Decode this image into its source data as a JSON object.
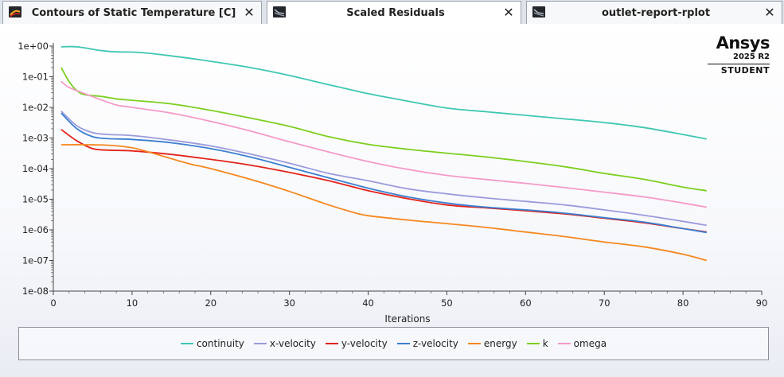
{
  "tabs": [
    {
      "label": "Contours of Static Temperature [C]",
      "icon": "contour-icon",
      "close": "✕",
      "active": false
    },
    {
      "label": "Scaled Residuals",
      "icon": "plot-icon",
      "close": "✕",
      "active": true
    },
    {
      "label": "outlet-report-rplot",
      "icon": "plot-icon",
      "close": "✕",
      "active": false
    }
  ],
  "logo": {
    "brand": "Ansys",
    "release": "2025 R2",
    "edition": "STUDENT"
  },
  "chart_data": {
    "type": "line",
    "title": "",
    "xlabel": "Iterations",
    "ylabel": "",
    "yscale": "log",
    "xlim": [
      0,
      90
    ],
    "ylim": [
      1e-08,
      1
    ],
    "x_ticks": [
      0,
      10,
      20,
      30,
      40,
      50,
      60,
      70,
      80,
      90
    ],
    "x_tick_labels": [
      "0",
      "10",
      "20",
      "30",
      "40",
      "50",
      "60",
      "70",
      "80",
      "90"
    ],
    "y_ticks": [
      1,
      0.1,
      0.01,
      0.001,
      0.0001,
      1e-05,
      1e-06,
      1e-07,
      1e-08
    ],
    "y_tick_labels": [
      "1e+00",
      "1e-01",
      "1e-02",
      "1e-03",
      "1e-04",
      "1e-05",
      "1e-06",
      "1e-07",
      "1e-08"
    ],
    "grid": false,
    "legend_position": "bottom",
    "series": [
      {
        "name": "continuity",
        "color": "#3fc7b3",
        "points": [
          [
            1,
            0.95
          ],
          [
            3,
            0.95
          ],
          [
            6,
            0.72
          ],
          [
            8,
            0.65
          ],
          [
            11,
            0.62
          ],
          [
            15,
            0.48
          ],
          [
            20,
            0.32
          ],
          [
            25,
            0.2
          ],
          [
            30,
            0.11
          ],
          [
            35,
            0.055
          ],
          [
            40,
            0.028
          ],
          [
            45,
            0.016
          ],
          [
            50,
            0.0095
          ],
          [
            55,
            0.0072
          ],
          [
            60,
            0.0055
          ],
          [
            65,
            0.0042
          ],
          [
            70,
            0.0032
          ],
          [
            75,
            0.0022
          ],
          [
            80,
            0.0013
          ],
          [
            83,
            0.00093
          ]
        ]
      },
      {
        "name": "x-velocity",
        "color": "#9b9bdc",
        "points": [
          [
            1,
            0.0075
          ],
          [
            3,
            0.0025
          ],
          [
            5,
            0.0015
          ],
          [
            7,
            0.0013
          ],
          [
            10,
            0.0012
          ],
          [
            15,
            0.00085
          ],
          [
            20,
            0.00055
          ],
          [
            25,
            0.0003
          ],
          [
            30,
            0.00015
          ],
          [
            35,
            7e-05
          ],
          [
            40,
            4e-05
          ],
          [
            45,
            2.2e-05
          ],
          [
            50,
            1.5e-05
          ],
          [
            55,
            1.1e-05
          ],
          [
            60,
            8.5e-06
          ],
          [
            65,
            6.5e-06
          ],
          [
            70,
            4.5e-06
          ],
          [
            75,
            3e-06
          ],
          [
            80,
            1.9e-06
          ],
          [
            83,
            1.4e-06
          ]
        ]
      },
      {
        "name": "y-velocity",
        "color": "#e3231b",
        "points": [
          [
            1,
            0.0019
          ],
          [
            3,
            0.0008
          ],
          [
            5,
            0.00045
          ],
          [
            7,
            0.0004
          ],
          [
            10,
            0.00038
          ],
          [
            15,
            0.00029
          ],
          [
            20,
            0.0002
          ],
          [
            25,
            0.00013
          ],
          [
            30,
            7.5e-05
          ],
          [
            35,
            4e-05
          ],
          [
            40,
            1.9e-05
          ],
          [
            45,
            1.05e-05
          ],
          [
            50,
            6.5e-06
          ],
          [
            55,
            5.2e-06
          ],
          [
            60,
            4.2e-06
          ],
          [
            65,
            3.3e-06
          ],
          [
            70,
            2.4e-06
          ],
          [
            75,
            1.7e-06
          ],
          [
            80,
            1.1e-06
          ],
          [
            83,
            8.5e-07
          ]
        ]
      },
      {
        "name": "z-velocity",
        "color": "#3b7fd0",
        "points": [
          [
            1,
            0.0065
          ],
          [
            3,
            0.002
          ],
          [
            5,
            0.0011
          ],
          [
            7,
            0.00095
          ],
          [
            10,
            0.0009
          ],
          [
            15,
            0.0007
          ],
          [
            20,
            0.00045
          ],
          [
            25,
            0.00024
          ],
          [
            30,
            0.00011
          ],
          [
            35,
            5e-05
          ],
          [
            40,
            2.3e-05
          ],
          [
            45,
            1.2e-05
          ],
          [
            50,
            7.5e-06
          ],
          [
            55,
            5.5e-06
          ],
          [
            60,
            4.5e-06
          ],
          [
            65,
            3.5e-06
          ],
          [
            70,
            2.5e-06
          ],
          [
            75,
            1.8e-06
          ],
          [
            80,
            1.1e-06
          ],
          [
            83,
            8.2e-07
          ]
        ]
      },
      {
        "name": "energy",
        "color": "#f5871f",
        "points": [
          [
            1,
            0.0006
          ],
          [
            4,
            0.0006
          ],
          [
            7,
            0.00058
          ],
          [
            10,
            0.00048
          ],
          [
            13,
            0.0003
          ],
          [
            17,
            0.00015
          ],
          [
            20,
            0.0001
          ],
          [
            25,
            4.5e-05
          ],
          [
            30,
            1.8e-05
          ],
          [
            35,
            6.5e-06
          ],
          [
            38,
            3.8e-06
          ],
          [
            40,
            2.9e-06
          ],
          [
            45,
            2.1e-06
          ],
          [
            50,
            1.6e-06
          ],
          [
            55,
            1.2e-06
          ],
          [
            60,
            8.5e-07
          ],
          [
            65,
            6e-07
          ],
          [
            70,
            4e-07
          ],
          [
            75,
            2.8e-07
          ],
          [
            80,
            1.6e-07
          ],
          [
            83,
            1e-07
          ]
        ]
      },
      {
        "name": "k",
        "color": "#7ccf1f",
        "points": [
          [
            1,
            0.2
          ],
          [
            2,
            0.07
          ],
          [
            3,
            0.035
          ],
          [
            4,
            0.026
          ],
          [
            6,
            0.023
          ],
          [
            8,
            0.019
          ],
          [
            10,
            0.017
          ],
          [
            15,
            0.013
          ],
          [
            20,
            0.008
          ],
          [
            25,
            0.0045
          ],
          [
            30,
            0.0024
          ],
          [
            35,
            0.0011
          ],
          [
            40,
            0.00062
          ],
          [
            45,
            0.00043
          ],
          [
            50,
            0.00032
          ],
          [
            55,
            0.00024
          ],
          [
            60,
            0.00017
          ],
          [
            65,
            0.000115
          ],
          [
            70,
            7e-05
          ],
          [
            75,
            4.5e-05
          ],
          [
            80,
            2.5e-05
          ],
          [
            83,
            1.9e-05
          ]
        ]
      },
      {
        "name": "omega",
        "color": "#f59ac8",
        "points": [
          [
            1,
            0.07
          ],
          [
            2,
            0.045
          ],
          [
            4,
            0.028
          ],
          [
            6,
            0.018
          ],
          [
            8,
            0.012
          ],
          [
            10,
            0.01
          ],
          [
            15,
            0.0065
          ],
          [
            20,
            0.0035
          ],
          [
            25,
            0.0017
          ],
          [
            30,
            0.00075
          ],
          [
            35,
            0.00035
          ],
          [
            40,
            0.00017
          ],
          [
            45,
            9.5e-05
          ],
          [
            50,
            6e-05
          ],
          [
            55,
            4.4e-05
          ],
          [
            60,
            3.3e-05
          ],
          [
            65,
            2.4e-05
          ],
          [
            70,
            1.7e-05
          ],
          [
            75,
            1.2e-05
          ],
          [
            80,
            7.5e-06
          ],
          [
            83,
            5.5e-06
          ]
        ]
      }
    ]
  }
}
